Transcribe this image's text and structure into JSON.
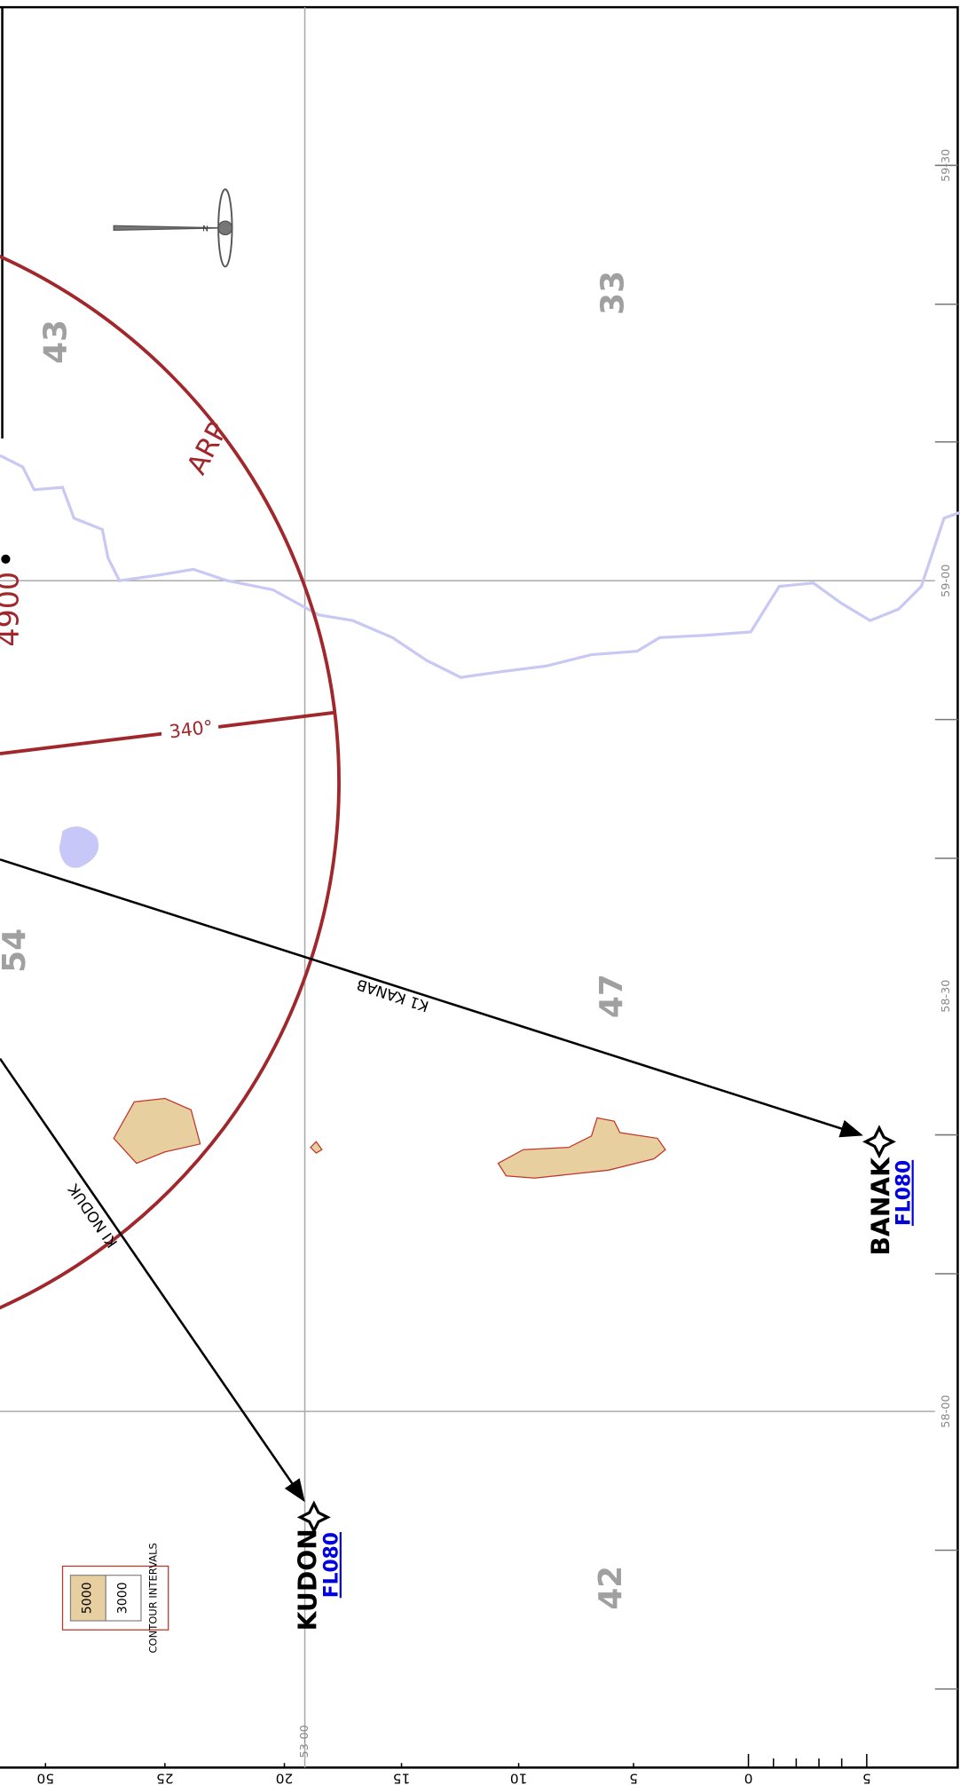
{
  "spot_elevations": [
    "43",
    "33",
    "54",
    "47",
    "42"
  ],
  "arp": {
    "label": "ARP",
    "elevation": "4900",
    "radial": "340°"
  },
  "routes": [
    {
      "label": "K1 KANAB"
    },
    {
      "label": "KI NODUK"
    }
  ],
  "waypoints": [
    {
      "name": "BANAK",
      "level": "FL080"
    },
    {
      "name": "KUDON",
      "level": "FL080"
    }
  ],
  "contour_legend": {
    "values": [
      "5000",
      "3000"
    ],
    "title": "CONTOUR INTERVALS"
  },
  "latitudes": [
    "59-30",
    "59-00",
    "58-30",
    "58-00"
  ],
  "longitude": "53-00",
  "scale_labels": [
    "50",
    "25",
    "20",
    "15",
    "10",
    "5",
    "0",
    "5"
  ]
}
